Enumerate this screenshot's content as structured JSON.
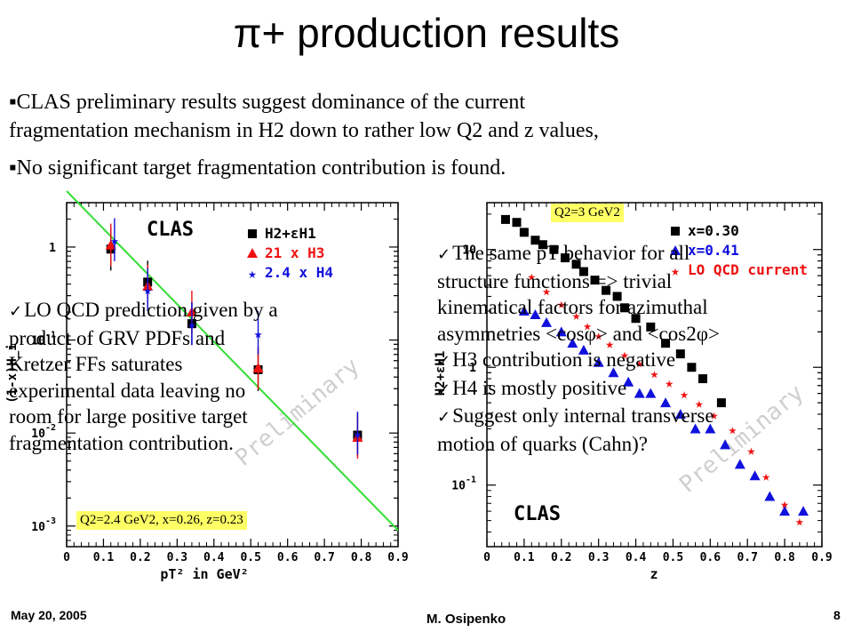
{
  "slide": {
    "title": "π+ production results",
    "bullets": [
      "▪CLAS preliminary results suggest dominance of the current",
      "fragmentation mechanism in H2 down to rather low Q2 and z values,",
      "▪No significant target fragmentation contribution is found."
    ],
    "left_note": [
      "LO QCD prediction given by a",
      "product of GRV PDFs and",
      "Kretzer FFs saturates",
      "experimental data leaving no",
      "room for large positive target",
      "fragmentation contribution."
    ],
    "right_note": [
      "The same pT behavior for all",
      "structure functions => trivial",
      "kinematical factors for azimuthal",
      "asymmetries <cosφ> and <cos2φ>",
      "H3 contribution is negative",
      "H4 is mostly positive",
      "Suggest only internal transverse",
      "motion of quarks (Cahn)?"
    ],
    "left_tag": "Q2=2.4 GeV2, x=0.26, z=0.23",
    "right_tag": "Q2=3 GeV2",
    "footer": {
      "date": "May 20, 2005",
      "author": "M. Osipenko",
      "page": "8"
    },
    "colors": {
      "highlight": "#ffff66",
      "fit_line": "#33dd33",
      "red": "#ee1111",
      "blue": "#1111dd"
    }
  },
  "chart_data": [
    {
      "type": "scatter",
      "brand": "CLAS",
      "watermark": "Preliminary",
      "xlabel": "pT² in GeV²",
      "ylabel": "(1-x)H_i",
      "xlim": [
        0,
        0.9
      ],
      "ylog": true,
      "ylim": [
        0.0006,
        3
      ],
      "x_ticks": [
        "0",
        "0.1",
        "0.2",
        "0.3",
        "0.4",
        "0.5",
        "0.6",
        "0.7",
        "0.8",
        "0.9"
      ],
      "y_ticks": [
        "10^-3",
        "10^-2",
        "10^-1",
        "1"
      ],
      "series": [
        {
          "name": "H2+εH1",
          "marker": "square",
          "color": "#000000",
          "x": [
            0.12,
            0.22,
            0.34,
            0.52,
            0.79
          ],
          "y": [
            0.95,
            0.42,
            0.15,
            0.048,
            0.0095
          ]
        },
        {
          "name": "21 x H3",
          "marker": "triangle",
          "color": "#ee1111",
          "x": [
            0.12,
            0.22,
            0.34,
            0.52,
            0.79
          ],
          "y": [
            1.05,
            0.38,
            0.2,
            0.05,
            0.009
          ]
        },
        {
          "name": "2.4 x H4",
          "marker": "star",
          "color": "#1111dd",
          "x": [
            0.13,
            0.22,
            0.34,
            0.52,
            0.79
          ],
          "y": [
            1.2,
            0.35,
            0.15,
            0.12,
            0.01
          ]
        }
      ],
      "fit": {
        "x": [
          0.0,
          0.9
        ],
        "y": [
          4.0,
          0.0009
        ]
      }
    },
    {
      "type": "scatter",
      "brand": "CLAS",
      "watermark": "Preliminary",
      "xlabel": "z",
      "ylabel": "H2+εH1",
      "xlim": [
        0,
        0.9
      ],
      "ylog": true,
      "ylim": [
        0.03,
        25
      ],
      "x_ticks": [
        "0",
        "0.1",
        "0.2",
        "0.3",
        "0.4",
        "0.5",
        "0.6",
        "0.7",
        "0.8",
        "0.9"
      ],
      "y_ticks": [
        "10^-1",
        "1",
        "10"
      ],
      "series": [
        {
          "name": "x=0.30",
          "marker": "square",
          "color": "#000000",
          "x": [
            0.05,
            0.08,
            0.1,
            0.13,
            0.15,
            0.18,
            0.21,
            0.24,
            0.26,
            0.29,
            0.32,
            0.35,
            0.37,
            0.4,
            0.44,
            0.48,
            0.52,
            0.55,
            0.58,
            0.63
          ],
          "y": [
            18,
            17,
            14,
            12,
            11,
            10,
            8.5,
            7.5,
            6.5,
            5.5,
            4.5,
            4,
            3.2,
            2.6,
            2.2,
            1.6,
            1.3,
            1.0,
            0.8,
            0.5
          ]
        },
        {
          "name": "x=0.41",
          "marker": "triangle",
          "color": "#1111dd",
          "x": [
            0.1,
            0.13,
            0.16,
            0.2,
            0.23,
            0.26,
            0.3,
            0.34,
            0.38,
            0.41,
            0.44,
            0.48,
            0.52,
            0.56,
            0.6,
            0.64,
            0.68,
            0.72,
            0.76,
            0.8,
            0.85
          ],
          "y": [
            3,
            2.8,
            2.4,
            2,
            1.6,
            1.4,
            1.1,
            0.9,
            0.75,
            0.6,
            0.6,
            0.5,
            0.4,
            0.3,
            0.3,
            0.22,
            0.15,
            0.12,
            0.08,
            0.06,
            0.06
          ]
        },
        {
          "name": "LO QCD current",
          "marker": "star",
          "color": "#ee1111",
          "x": [
            0.12,
            0.16,
            0.2,
            0.24,
            0.27,
            0.3,
            0.33,
            0.37,
            0.41,
            0.45,
            0.49,
            0.53,
            0.57,
            0.61,
            0.66,
            0.71,
            0.75,
            0.8,
            0.84
          ],
          "y": [
            6,
            4.5,
            3.5,
            2.8,
            2.3,
            1.9,
            1.6,
            1.3,
            1.1,
            0.9,
            0.75,
            0.6,
            0.5,
            0.4,
            0.3,
            0.2,
            0.12,
            0.07,
            0.05
          ]
        }
      ]
    }
  ]
}
